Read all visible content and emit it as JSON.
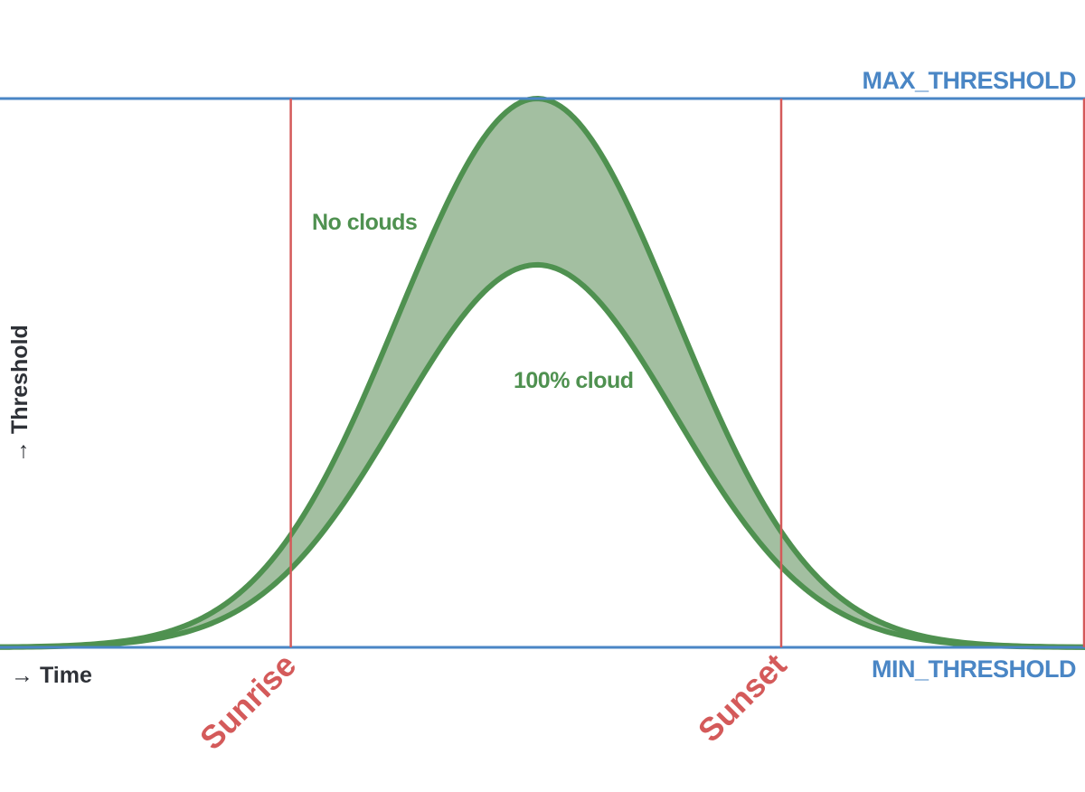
{
  "chart_data": {
    "type": "area",
    "title": "",
    "xlabel": "→ Time",
    "ylabel": "→ Threshold",
    "ylim": [
      0,
      1
    ],
    "grid": false,
    "thresholds": {
      "max_label": "MAX_THRESHOLD",
      "min_label": "MIN_THRESHOLD",
      "max": 1,
      "min": 0
    },
    "events": [
      {
        "label": "Sunrise",
        "x": 0.268
      },
      {
        "label": "Sunset",
        "x": 0.72
      }
    ],
    "series": [
      {
        "name": "No clouds",
        "peak": 1.0,
        "center": 0.495,
        "sigma": 0.1275
      },
      {
        "name": "100% cloud",
        "peak": 0.697,
        "center": 0.495,
        "sigma": 0.1275
      }
    ],
    "colors": {
      "threshold": "#4a86c5",
      "event": "#d45a5a",
      "curve": "#4f9150",
      "fill": "#a3bfa1",
      "axis_text": "#2e3137"
    }
  }
}
